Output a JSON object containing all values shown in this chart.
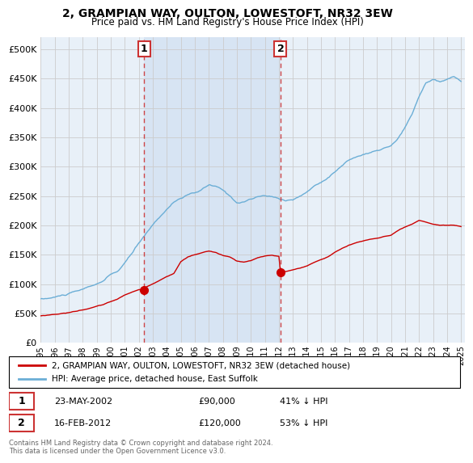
{
  "title": "2, GRAMPIAN WAY, OULTON, LOWESTOFT, NR32 3EW",
  "subtitle": "Price paid vs. HM Land Registry's House Price Index (HPI)",
  "background_color": "#ffffff",
  "plot_bg_color": "#ffffff",
  "chart_fill_color": "#e8f0f8",
  "shade_color": "#ccddf0",
  "legend_line1": "2, GRAMPIAN WAY, OULTON, LOWESTOFT, NR32 3EW (detached house)",
  "legend_line2": "HPI: Average price, detached house, East Suffolk",
  "transaction1_date": "23-MAY-2002",
  "transaction1_price": "£90,000",
  "transaction1_hpi": "41% ↓ HPI",
  "transaction1_year": 2002.38,
  "transaction1_value": 90000,
  "transaction2_date": "16-FEB-2012",
  "transaction2_price": "£120,000",
  "transaction2_hpi": "53% ↓ HPI",
  "transaction2_year": 2012.12,
  "transaction2_value": 120000,
  "footer": "Contains HM Land Registry data © Crown copyright and database right 2024.\nThis data is licensed under the Open Government Licence v3.0.",
  "ylim": [
    0,
    520000
  ],
  "yticks": [
    0,
    50000,
    100000,
    150000,
    200000,
    250000,
    300000,
    350000,
    400000,
    450000,
    500000
  ],
  "hpi_color": "#6baed6",
  "price_color": "#cc0000",
  "vline_color": "#cc3333",
  "grid_color": "#cccccc"
}
